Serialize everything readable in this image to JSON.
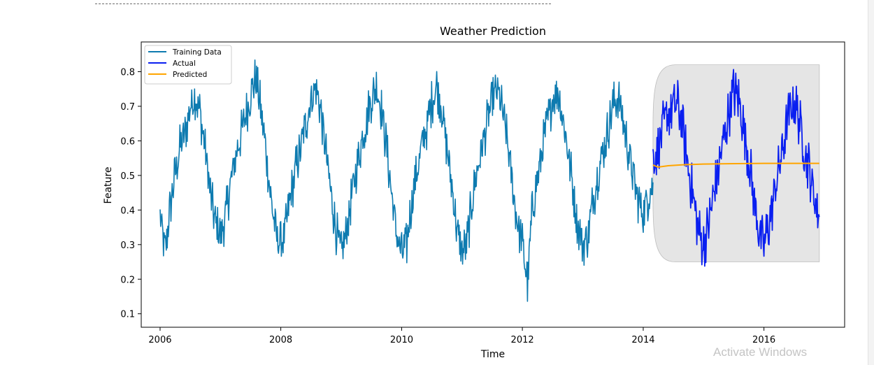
{
  "watermark": "Activate Windows",
  "chart_data": {
    "type": "line",
    "title": "Weather Prediction",
    "xlabel": "Time",
    "ylabel": "Feature",
    "xlim": [
      "2005-09-09",
      "2017-05-03"
    ],
    "ylim": [
      0.061,
      0.886
    ],
    "xticks": [
      "2006",
      "2008",
      "2010",
      "2012",
      "2014",
      "2016"
    ],
    "yticks": [
      "0.1",
      "0.2",
      "0.3",
      "0.4",
      "0.5",
      "0.6",
      "0.7",
      "0.8"
    ],
    "grid": false,
    "legend_position": "top-left",
    "series": [
      {
        "name": "Training Data",
        "color": "#0e7bb0",
        "x": [
          "2006-01",
          "2006-02",
          "2006-03",
          "2006-04",
          "2006-05",
          "2006-06",
          "2006-07",
          "2006-08",
          "2006-09",
          "2006-10",
          "2006-11",
          "2006-12",
          "2007-01",
          "2007-02",
          "2007-03",
          "2007-04",
          "2007-05",
          "2007-06",
          "2007-07",
          "2007-08",
          "2007-09",
          "2007-10",
          "2007-11",
          "2007-12",
          "2008-01",
          "2008-02",
          "2008-03",
          "2008-04",
          "2008-05",
          "2008-06",
          "2008-07",
          "2008-08",
          "2008-09",
          "2008-10",
          "2008-11",
          "2008-12",
          "2009-01",
          "2009-02",
          "2009-03",
          "2009-04",
          "2009-05",
          "2009-06",
          "2009-07",
          "2009-08",
          "2009-09",
          "2009-10",
          "2009-11",
          "2009-12",
          "2010-01",
          "2010-02",
          "2010-03",
          "2010-04",
          "2010-05",
          "2010-06",
          "2010-07",
          "2010-08",
          "2010-09",
          "2010-10",
          "2010-11",
          "2010-12",
          "2011-01",
          "2011-02",
          "2011-03",
          "2011-04",
          "2011-05",
          "2011-06",
          "2011-07",
          "2011-08",
          "2011-09",
          "2011-10",
          "2011-11",
          "2011-12",
          "2012-01",
          "2012-02",
          "2012-03",
          "2012-04",
          "2012-05",
          "2012-06",
          "2012-07",
          "2012-08",
          "2012-09",
          "2012-10",
          "2012-11",
          "2012-12",
          "2013-01",
          "2013-02",
          "2013-03",
          "2013-04",
          "2013-05",
          "2013-06",
          "2013-07",
          "2013-08",
          "2013-09",
          "2013-10",
          "2013-11",
          "2013-12",
          "2014-01",
          "2014-02",
          "2014-03"
        ],
        "y": [
          0.38,
          0.28,
          0.4,
          0.5,
          0.58,
          0.62,
          0.7,
          0.73,
          0.68,
          0.57,
          0.45,
          0.36,
          0.33,
          0.38,
          0.47,
          0.55,
          0.61,
          0.67,
          0.73,
          0.78,
          0.7,
          0.58,
          0.44,
          0.33,
          0.3,
          0.35,
          0.44,
          0.52,
          0.58,
          0.65,
          0.72,
          0.76,
          0.68,
          0.56,
          0.44,
          0.34,
          0.27,
          0.33,
          0.43,
          0.51,
          0.59,
          0.66,
          0.72,
          0.76,
          0.69,
          0.58,
          0.45,
          0.33,
          0.27,
          0.3,
          0.42,
          0.5,
          0.58,
          0.64,
          0.71,
          0.76,
          0.7,
          0.58,
          0.47,
          0.34,
          0.27,
          0.31,
          0.42,
          0.51,
          0.58,
          0.65,
          0.71,
          0.75,
          0.69,
          0.6,
          0.47,
          0.37,
          0.3,
          0.19,
          0.4,
          0.49,
          0.58,
          0.65,
          0.72,
          0.75,
          0.67,
          0.58,
          0.47,
          0.36,
          0.3,
          0.33,
          0.42,
          0.5,
          0.57,
          0.63,
          0.7,
          0.73,
          0.66,
          0.58,
          0.5,
          0.43,
          0.4,
          0.44,
          0.48
        ]
      },
      {
        "name": "Actual",
        "color": "#0a1ff0",
        "x": [
          "2014-03",
          "2014-04",
          "2014-05",
          "2014-06",
          "2014-07",
          "2014-08",
          "2014-09",
          "2014-10",
          "2014-11",
          "2014-12",
          "2015-01",
          "2015-02",
          "2015-03",
          "2015-04",
          "2015-05",
          "2015-06",
          "2015-07",
          "2015-08",
          "2015-09",
          "2015-10",
          "2015-11",
          "2015-12",
          "2016-01",
          "2016-02",
          "2016-03",
          "2016-04",
          "2016-05",
          "2016-06",
          "2016-07",
          "2016-08",
          "2016-09",
          "2016-10",
          "2016-11",
          "2016-12"
        ],
        "y": [
          0.55,
          0.58,
          0.64,
          0.68,
          0.7,
          0.7,
          0.62,
          0.52,
          0.43,
          0.34,
          0.3,
          0.36,
          0.44,
          0.52,
          0.6,
          0.68,
          0.74,
          0.72,
          0.64,
          0.55,
          0.44,
          0.34,
          0.3,
          0.36,
          0.44,
          0.52,
          0.6,
          0.68,
          0.72,
          0.66,
          0.58,
          0.52,
          0.44,
          0.38
        ]
      },
      {
        "name": "Predicted",
        "color": "#ffa500",
        "x": [
          "2014-03",
          "2014-04",
          "2014-06",
          "2014-09",
          "2015-01",
          "2015-06",
          "2016-01",
          "2016-06",
          "2016-12"
        ],
        "y": [
          0.53,
          0.524,
          0.528,
          0.531,
          0.533,
          0.534,
          0.535,
          0.535,
          0.535
        ]
      }
    ],
    "confidence_band": {
      "x_start": "2014-03",
      "x_end": "2016-12",
      "y_low": 0.25,
      "y_high": 0.82,
      "color": "#cccccc"
    }
  }
}
